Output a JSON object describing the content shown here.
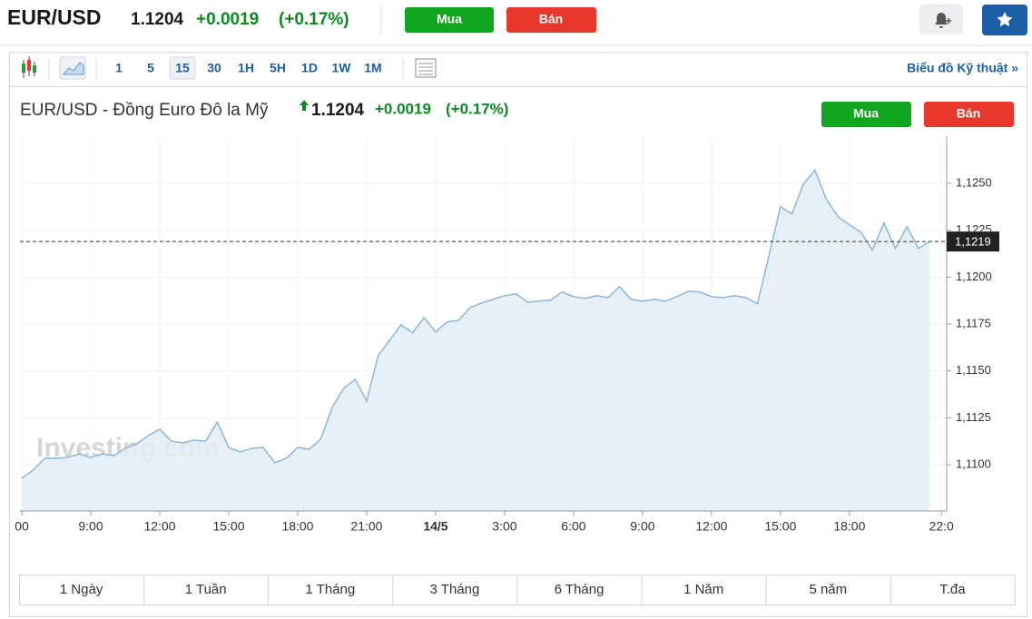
{
  "header": {
    "symbol": "EUR/USD",
    "price": "1.1204",
    "change": "+0.0019",
    "change_pct": "(+0.17%)",
    "buy": "Mua",
    "sell": "Bán"
  },
  "toolbar": {
    "intervals": [
      "1",
      "5",
      "15",
      "30",
      "1H",
      "5H",
      "1D",
      "1W",
      "1M"
    ],
    "active_interval": 2,
    "technical_link": "Biểu đồ Kỹ thuật »"
  },
  "chart_data": {
    "type": "area",
    "title": "EUR/USD - Đồng Euro Đô la Mỹ",
    "price": "1.1204",
    "change": "+0.0019",
    "change_pct": "(+0.17%)",
    "buy": "Mua",
    "sell": "Bán",
    "watermark": "Investing.com",
    "line_color": "#8cb6db",
    "fill_color": "#e4edf6",
    "x": [
      6,
      6.5,
      7,
      7.5,
      8,
      8.5,
      9,
      9.5,
      10,
      10.5,
      11,
      11.5,
      12,
      12.5,
      13,
      13.5,
      14,
      14.5,
      15,
      15.5,
      16,
      16.5,
      17,
      17.5,
      18,
      18.5,
      19,
      19.5,
      20,
      20.5,
      21,
      21.5,
      22,
      22.5,
      23,
      23.5,
      24,
      24.5,
      25,
      25.5,
      26,
      26.5,
      27,
      27.5,
      28,
      28.5,
      29,
      29.5,
      30,
      30.5,
      31,
      31.5,
      32,
      32.5,
      33,
      33.5,
      34,
      34.5,
      35,
      35.5,
      36,
      36.5,
      37,
      37.5,
      38,
      38.5,
      39,
      39.5,
      40,
      40.5,
      41,
      41.5,
      42,
      42.5,
      43,
      43.5,
      44,
      44.5,
      45,
      45.5
    ],
    "values": [
      1.10927,
      1.10971,
      1.11034,
      1.11034,
      1.11039,
      1.11058,
      1.11039,
      1.11058,
      1.11048,
      1.11087,
      1.11111,
      1.11155,
      1.11189,
      1.11126,
      1.11116,
      1.11131,
      1.11126,
      1.11228,
      1.11092,
      1.11068,
      1.11087,
      1.11092,
      1.1101,
      1.11034,
      1.11092,
      1.11082,
      1.11136,
      1.11305,
      1.11407,
      1.11455,
      1.11339,
      1.11581,
      1.11664,
      1.11746,
      1.11703,
      1.11785,
      1.11708,
      1.11761,
      1.1177,
      1.11838,
      1.11862,
      1.11882,
      1.11901,
      1.11911,
      1.11867,
      1.11872,
      1.11877,
      1.11921,
      1.11896,
      1.11887,
      1.11901,
      1.11891,
      1.1195,
      1.11882,
      1.11872,
      1.11882,
      1.11872,
      1.11896,
      1.11925,
      1.11921,
      1.11896,
      1.11891,
      1.11901,
      1.11891,
      1.11858,
      1.12114,
      1.12376,
      1.12337,
      1.12497,
      1.1257,
      1.12415,
      1.12323,
      1.12279,
      1.1224,
      1.12143,
      1.12289,
      1.12153,
      1.12269,
      1.12153,
      1.1219
    ],
    "current": {
      "value": 1.1219,
      "label": "1,1219"
    },
    "xlim": [
      5.92,
      46.23
    ],
    "xticks": [
      {
        "value": 6,
        "label": "00"
      },
      {
        "value": 9,
        "label": "9:00"
      },
      {
        "value": 12,
        "label": "12:00"
      },
      {
        "value": 15,
        "label": "15:00"
      },
      {
        "value": 18,
        "label": "18:00"
      },
      {
        "value": 21,
        "label": "21:00"
      },
      {
        "value": 24,
        "label": "14/5"
      },
      {
        "value": 27,
        "label": "3:00"
      },
      {
        "value": 30,
        "label": "6:00"
      },
      {
        "value": 33,
        "label": "9:00"
      },
      {
        "value": 36,
        "label": "12:00"
      },
      {
        "value": 39,
        "label": "15:00"
      },
      {
        "value": 42,
        "label": "18:00"
      },
      {
        "value": 46,
        "label": "22:0"
      }
    ],
    "ylim": [
      1.10753,
      1.12752
    ],
    "yticks": [
      {
        "value": 1.11,
        "label": "1,1100"
      },
      {
        "value": 1.1125,
        "label": "1,1125"
      },
      {
        "value": 1.115,
        "label": "1,1150"
      },
      {
        "value": 1.1175,
        "label": "1,1175"
      },
      {
        "value": 1.12,
        "label": "1,1200"
      },
      {
        "value": 1.1225,
        "label": "1,1225"
      },
      {
        "value": 1.125,
        "label": "1,1250"
      }
    ],
    "grid": true
  },
  "ranges": [
    "1 Ngày",
    "1 Tuần",
    "1 Tháng",
    "3 Tháng",
    "6 Tháng",
    "1 Năm",
    "5 năm",
    "T.đa"
  ]
}
